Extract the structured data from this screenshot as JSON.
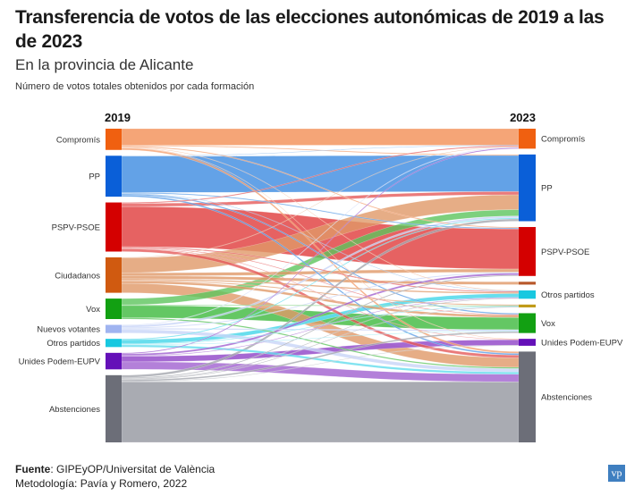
{
  "header": {
    "title": "Transferencia de votos de las elecciones autonómicas de 2019 a las de 2023",
    "subtitle": "En la provincia de Alicante",
    "note": "Número de votos totales obtenidos por cada formación"
  },
  "footer": {
    "source_label": "Fuente",
    "source_text": ": GIPEyOP/Universitat de València",
    "methodology": "Metodología: Pavía y Romero, 2022",
    "logo": "vp"
  },
  "chart_data": {
    "type": "sankey",
    "title": "Transferencia de votos de las elecciones autonómicas de 2019 a las de 2023",
    "subtitle": "En la provincia de Alicante",
    "units": "thousands of votes (estimated from band widths)",
    "left_label": "2019",
    "right_label": "2023",
    "left_nodes": [
      {
        "id": "L_comp",
        "name": "Compromís",
        "color": "#f06010",
        "flow_color": "#f4a070"
      },
      {
        "id": "L_pp",
        "name": "PP",
        "color": "#0a5fd8",
        "flow_color": "#5b9de6"
      },
      {
        "id": "L_psoe",
        "name": "PSPV-PSOE",
        "color": "#d40000",
        "flow_color": "#e55a5a"
      },
      {
        "id": "L_cs",
        "name": "Ciudadanos",
        "color": "#d05a10",
        "flow_color": "#e09868"
      },
      {
        "id": "L_vox",
        "name": "Vox",
        "color": "#12a012",
        "flow_color": "#5cc45c"
      },
      {
        "id": "L_nuevos",
        "name": "Nuevos votantes",
        "color": "#a0b4f0",
        "flow_color": "#c8d4f8"
      },
      {
        "id": "L_otros",
        "name": "Otros partidos",
        "color": "#18c8e0",
        "flow_color": "#60dcec"
      },
      {
        "id": "L_unides",
        "name": "Unides Podem-EUPV",
        "color": "#6410b8",
        "flow_color": "#a060d0"
      },
      {
        "id": "L_abst",
        "name": "Abstenciones",
        "color": "#6c6e78",
        "flow_color": "#a4a6ae"
      }
    ],
    "right_nodes": [
      {
        "id": "R_comp",
        "name": "Compromís",
        "color": "#f06010",
        "flow_color": "#f4a070"
      },
      {
        "id": "R_pp",
        "name": "PP",
        "color": "#0a5fd8",
        "flow_color": "#5b9de6"
      },
      {
        "id": "R_psoe",
        "name": "PSPV-PSOE",
        "color": "#d40000",
        "flow_color": "#e55a5a"
      },
      {
        "id": "R_cs",
        "name": "",
        "color": "#b8582a",
        "flow_color": "#c88050"
      },
      {
        "id": "R_otros",
        "name": "Otros partidos",
        "color": "#18c8e0",
        "flow_color": "#60dcec"
      },
      {
        "id": "R_gold",
        "name": "",
        "color": "#c09a18",
        "flow_color": "#d8b850"
      },
      {
        "id": "R_vox",
        "name": "Vox",
        "color": "#12a012",
        "flow_color": "#5cc45c"
      },
      {
        "id": "R_unides",
        "name": "Unides Podem-EUPV",
        "color": "#6410b8",
        "flow_color": "#a060d0"
      },
      {
        "id": "R_abst",
        "name": "Abstenciones",
        "color": "#6c6e78",
        "flow_color": "#a4a6ae"
      }
    ],
    "links": [
      {
        "source": "L_comp",
        "target": "R_comp",
        "value": 105
      },
      {
        "source": "L_comp",
        "target": "R_pp",
        "value": 6
      },
      {
        "source": "L_comp",
        "target": "R_psoe",
        "value": 6
      },
      {
        "source": "L_comp",
        "target": "R_otros",
        "value": 3
      },
      {
        "source": "L_comp",
        "target": "R_abst",
        "value": 12
      },
      {
        "source": "L_comp",
        "target": "R_unides",
        "value": 3
      },
      {
        "source": "L_pp",
        "target": "R_pp",
        "value": 230
      },
      {
        "source": "L_pp",
        "target": "R_comp",
        "value": 3
      },
      {
        "source": "L_pp",
        "target": "R_psoe",
        "value": 6
      },
      {
        "source": "L_pp",
        "target": "R_vox",
        "value": 8
      },
      {
        "source": "L_pp",
        "target": "R_otros",
        "value": 3
      },
      {
        "source": "L_pp",
        "target": "R_abst",
        "value": 10
      },
      {
        "source": "L_psoe",
        "target": "R_psoe",
        "value": 255
      },
      {
        "source": "L_psoe",
        "target": "R_pp",
        "value": 20
      },
      {
        "source": "L_psoe",
        "target": "R_comp",
        "value": 6
      },
      {
        "source": "L_psoe",
        "target": "R_unides",
        "value": 3
      },
      {
        "source": "L_psoe",
        "target": "R_otros",
        "value": 6
      },
      {
        "source": "L_psoe",
        "target": "R_abst",
        "value": 18
      },
      {
        "source": "L_psoe",
        "target": "R_vox",
        "value": 4
      },
      {
        "source": "L_cs",
        "target": "R_pp",
        "value": 95
      },
      {
        "source": "L_cs",
        "target": "R_cs",
        "value": 18
      },
      {
        "source": "L_cs",
        "target": "R_psoe",
        "value": 20
      },
      {
        "source": "L_cs",
        "target": "R_vox",
        "value": 15
      },
      {
        "source": "L_cs",
        "target": "R_otros",
        "value": 8
      },
      {
        "source": "L_cs",
        "target": "R_gold",
        "value": 6
      },
      {
        "source": "L_cs",
        "target": "R_abst",
        "value": 60
      },
      {
        "source": "L_cs",
        "target": "R_comp",
        "value": 3
      },
      {
        "source": "L_vox",
        "target": "R_pp",
        "value": 40
      },
      {
        "source": "L_vox",
        "target": "R_vox",
        "value": 78
      },
      {
        "source": "L_vox",
        "target": "R_gold",
        "value": 4
      },
      {
        "source": "L_vox",
        "target": "R_abst",
        "value": 8
      },
      {
        "source": "L_nuevos",
        "target": "R_pp",
        "value": 12
      },
      {
        "source": "L_nuevos",
        "target": "R_psoe",
        "value": 6
      },
      {
        "source": "L_nuevos",
        "target": "R_vox",
        "value": 8
      },
      {
        "source": "L_nuevos",
        "target": "R_abst",
        "value": 22
      },
      {
        "source": "L_nuevos",
        "target": "R_comp",
        "value": 4
      },
      {
        "source": "L_otros",
        "target": "R_otros",
        "value": 25
      },
      {
        "source": "L_otros",
        "target": "R_pp",
        "value": 6
      },
      {
        "source": "L_otros",
        "target": "R_abst",
        "value": 14
      },
      {
        "source": "L_otros",
        "target": "R_gold",
        "value": 4
      },
      {
        "source": "L_otros",
        "target": "R_vox",
        "value": 3
      },
      {
        "source": "L_unides",
        "target": "R_unides",
        "value": 35
      },
      {
        "source": "L_unides",
        "target": "R_psoe",
        "value": 12
      },
      {
        "source": "L_unides",
        "target": "R_comp",
        "value": 6
      },
      {
        "source": "L_unides",
        "target": "R_abst",
        "value": 48
      },
      {
        "source": "L_unides",
        "target": "R_otros",
        "value": 4
      },
      {
        "source": "L_abst",
        "target": "R_abst",
        "value": 385
      },
      {
        "source": "L_abst",
        "target": "R_pp",
        "value": 15
      },
      {
        "source": "L_abst",
        "target": "R_psoe",
        "value": 6
      },
      {
        "source": "L_abst",
        "target": "R_vox",
        "value": 10
      },
      {
        "source": "L_abst",
        "target": "R_otros",
        "value": 4
      },
      {
        "source": "L_abst",
        "target": "R_gold",
        "value": 4
      },
      {
        "source": "L_abst",
        "target": "R_unides",
        "value": 3
      }
    ]
  }
}
